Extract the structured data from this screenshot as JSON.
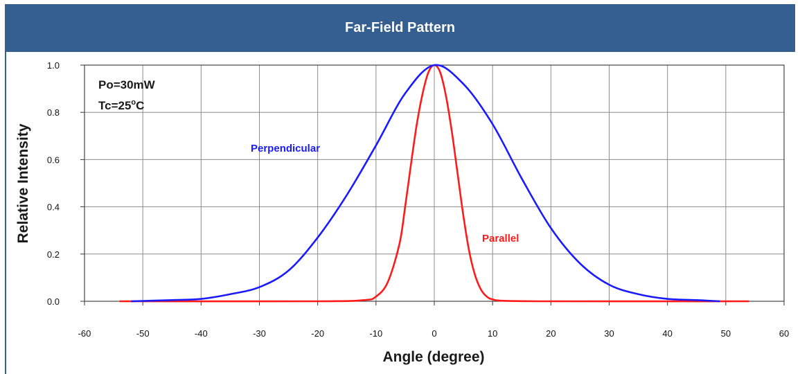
{
  "header": {
    "title": "Far-Field Pattern"
  },
  "colors": {
    "header_bg": "#355f91",
    "perpendicular": "#1a1aff",
    "parallel": "#ff1a1a"
  },
  "chart_data": {
    "type": "line",
    "title": "Far-Field Pattern",
    "xlabel": "Angle (degree)",
    "ylabel": "Relative Intensity",
    "xlim": [
      -60,
      60
    ],
    "ylim": [
      0,
      1.0
    ],
    "xticks": [
      -60,
      -50,
      -40,
      -30,
      -20,
      -10,
      0,
      10,
      20,
      30,
      40,
      50,
      60
    ],
    "yticks": [
      "0.0",
      "0.2",
      "0.4",
      "0.6",
      "0.8",
      "1.0"
    ],
    "grid": true,
    "annotations": {
      "power": "Po=30mW",
      "temp_prefix": "Tc=25",
      "temp_sup": "o",
      "temp_unit": "C"
    },
    "series": [
      {
        "name": "Perpendicular",
        "color": "#1a1aff",
        "x": [
          -52,
          -45,
          -40,
          -35,
          -30,
          -25,
          -20,
          -15,
          -10,
          -5,
          0,
          5,
          10,
          15,
          20,
          25,
          30,
          35,
          40,
          45,
          49
        ],
        "y": [
          0.0,
          0.005,
          0.01,
          0.03,
          0.06,
          0.13,
          0.27,
          0.45,
          0.66,
          0.88,
          1.0,
          0.92,
          0.75,
          0.52,
          0.31,
          0.16,
          0.07,
          0.03,
          0.01,
          0.005,
          0.0
        ]
      },
      {
        "name": "Parallel",
        "color": "#ff1a1a",
        "x": [
          -54,
          -20,
          -12,
          -10,
          -8,
          -6,
          -5,
          -4,
          -3,
          -2,
          -1,
          0,
          1,
          2,
          3,
          4,
          5,
          6,
          7,
          8,
          9,
          10,
          12,
          20,
          54
        ],
        "y": [
          0.0,
          0.0,
          0.005,
          0.02,
          0.08,
          0.24,
          0.4,
          0.58,
          0.75,
          0.88,
          0.97,
          1.0,
          0.97,
          0.87,
          0.72,
          0.54,
          0.36,
          0.21,
          0.11,
          0.05,
          0.02,
          0.008,
          0.002,
          0.0,
          0.0
        ]
      }
    ]
  }
}
